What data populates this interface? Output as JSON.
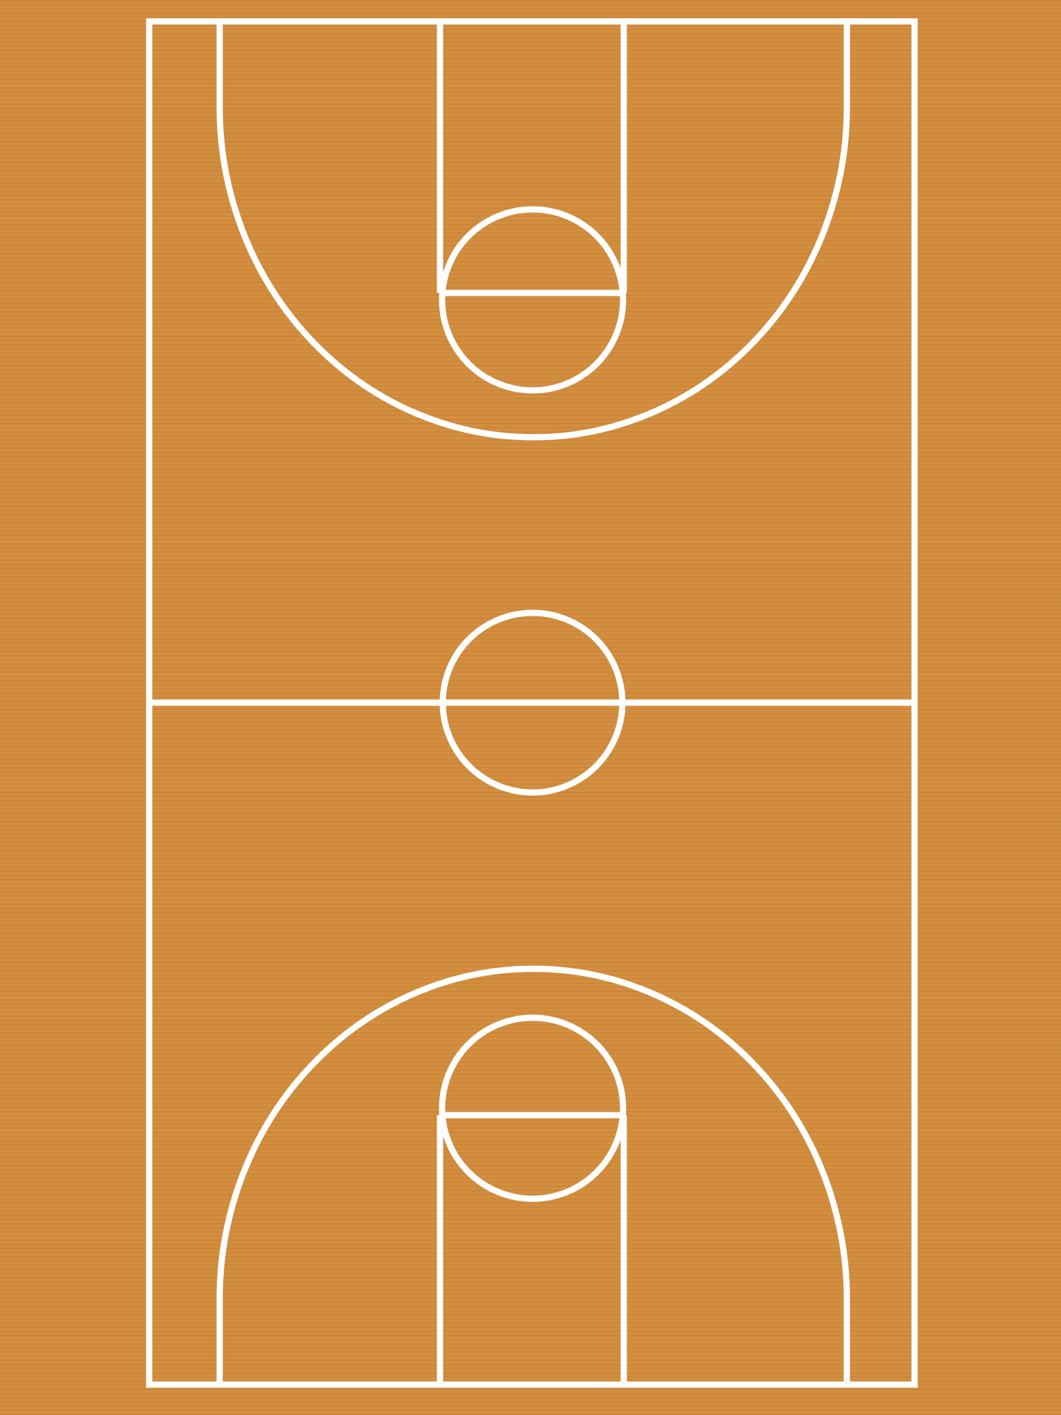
{
  "court": {
    "floor_color": "#d38f3f",
    "floor_stripe_color": "#cb8638",
    "line_color": "#ffffff"
  }
}
